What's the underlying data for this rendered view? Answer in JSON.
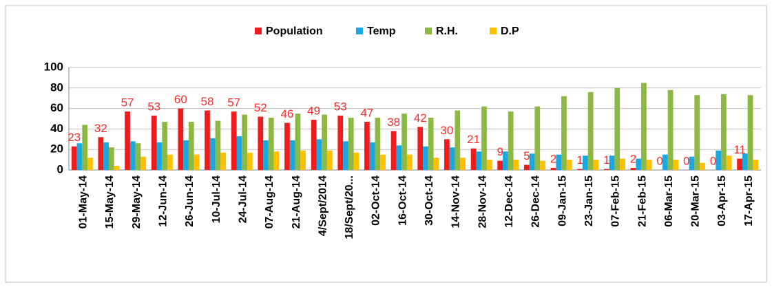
{
  "chart_data": {
    "type": "bar",
    "categories": [
      "01-May-14",
      "15-May-14",
      "29-May-14",
      "12-Jun-14",
      "26-Jun-14",
      "10-Jul-14",
      "24-Jul-14",
      "07-Aug-14",
      "21-Aug-14",
      "4/Sept/2014",
      "18/Sept/20...",
      "02-Oct-14",
      "16-Oct-14",
      "30-Oct-14",
      "14-Nov-14",
      "28-Nov-14",
      "12-Dec-14",
      "26-Dec-14",
      "09-Jan-15",
      "23-Jan-15",
      "07-Feb-15",
      "21-Feb-15",
      "06-Mar-15",
      "20-Mar-15",
      "03-Apr-15",
      "17-Apr-15"
    ],
    "series": [
      {
        "name": "Population",
        "color": "#ee1c1c",
        "values": [
          23,
          32,
          57,
          53,
          60,
          58,
          57,
          52,
          46,
          49,
          53,
          47,
          38,
          42,
          30,
          21,
          9,
          5,
          2,
          1,
          1,
          2,
          0,
          0,
          0,
          11
        ]
      },
      {
        "name": "Temp",
        "color": "#1ba8e0",
        "values": [
          26,
          27,
          28,
          27,
          29,
          31,
          33,
          29,
          29,
          30,
          28,
          27,
          24,
          23,
          22,
          18,
          18,
          16,
          15,
          14,
          14,
          11,
          15,
          13,
          19,
          16
        ]
      },
      {
        "name": "R.H.",
        "color": "#8cb844",
        "values": [
          44,
          22,
          26,
          47,
          47,
          48,
          54,
          51,
          55,
          54,
          51,
          51,
          55,
          51,
          58,
          62,
          57,
          62,
          72,
          76,
          80,
          85,
          78,
          73,
          74,
          73
        ]
      },
      {
        "name": "D.P",
        "color": "#ffc000",
        "values": [
          12,
          4,
          13,
          15,
          15,
          17,
          17,
          18,
          19,
          19,
          17,
          15,
          15,
          12,
          12,
          10,
          10,
          9,
          10,
          10,
          11,
          10,
          10,
          7,
          14,
          10
        ]
      }
    ],
    "ylim": [
      0,
      100
    ],
    "yticks": [
      0,
      20,
      40,
      60,
      80,
      100
    ],
    "grid": true,
    "legend": "top",
    "data_labels_series": 0
  }
}
